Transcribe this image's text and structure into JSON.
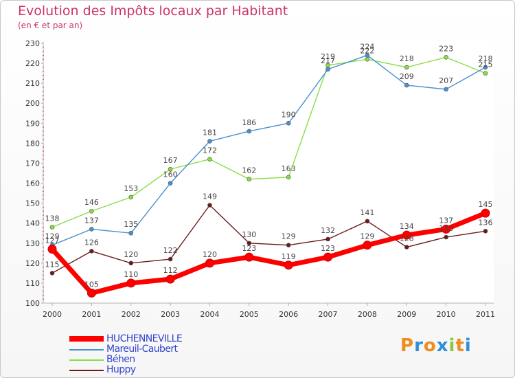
{
  "title": "Evolution des Impôts locaux par Habitant",
  "subtitle": "(en € et par an)",
  "brand": {
    "letters": [
      "P",
      "r",
      "o",
      "x",
      "i",
      "t",
      "i"
    ],
    "colors": [
      "#f08c1e",
      "#2f8fd8",
      "#f08c1e",
      "#2f8fd8",
      "#8cc63f",
      "#f08c1e",
      "#2f8fd8"
    ]
  },
  "chart_data": {
    "type": "line",
    "x": [
      "2000",
      "2001",
      "2002",
      "2003",
      "2004",
      "2005",
      "2006",
      "2007",
      "2008",
      "2009",
      "2010",
      "2011"
    ],
    "ylim": [
      100,
      230
    ],
    "yticks": [
      100,
      110,
      120,
      130,
      140,
      150,
      160,
      170,
      180,
      190,
      200,
      210,
      220,
      230
    ],
    "grid": false,
    "legend": "bottom-left",
    "series": [
      {
        "name": "HUCHENNEVILLE",
        "color": "#ff0000",
        "values": [
          127,
          105,
          110,
          112,
          120,
          123,
          119,
          123,
          129,
          134,
          137,
          145
        ]
      },
      {
        "name": "Mareuil-Caubert",
        "color": "#4a90d0",
        "values": [
          129,
          137,
          135,
          160,
          181,
          186,
          190,
          217,
          224,
          209,
          207,
          218
        ]
      },
      {
        "name": "Béhen",
        "color": "#88dd44",
        "values": [
          138,
          146,
          153,
          167,
          172,
          162,
          163,
          219,
          222,
          218,
          223,
          215
        ]
      },
      {
        "name": "Huppy",
        "color": "#6b1a1a",
        "values": [
          115,
          126,
          120,
          122,
          149,
          130,
          129,
          132,
          141,
          128,
          133,
          136
        ]
      }
    ]
  }
}
